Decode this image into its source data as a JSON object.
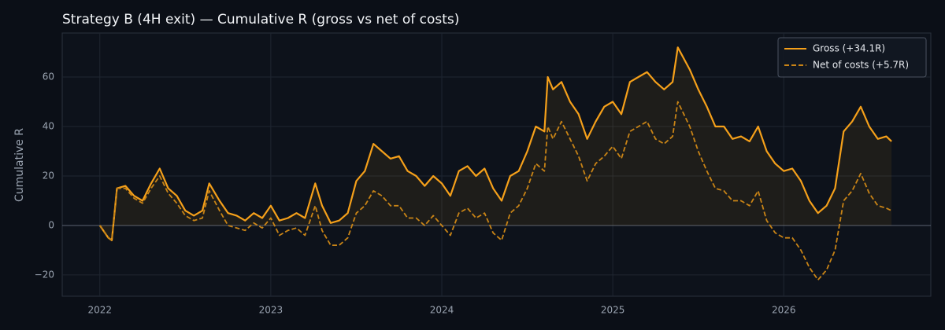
{
  "chart_data": {
    "type": "line",
    "title": "Strategy B (4H exit) — Cumulative R (gross vs net of costs)",
    "y_label": "Cumulative R",
    "x": [
      2022.0,
      2022.05,
      2022.07,
      2022.1,
      2022.15,
      2022.2,
      2022.25,
      2022.3,
      2022.35,
      2022.4,
      2022.45,
      2022.5,
      2022.55,
      2022.6,
      2022.64,
      2022.7,
      2022.75,
      2022.8,
      2022.85,
      2022.9,
      2022.95,
      2023.0,
      2023.05,
      2023.1,
      2023.15,
      2023.2,
      2023.26,
      2023.3,
      2023.35,
      2023.4,
      2023.45,
      2023.5,
      2023.55,
      2023.6,
      2023.65,
      2023.7,
      2023.75,
      2023.8,
      2023.85,
      2023.9,
      2023.95,
      2024.0,
      2024.05,
      2024.1,
      2024.15,
      2024.2,
      2024.25,
      2024.3,
      2024.35,
      2024.4,
      2024.45,
      2024.5,
      2024.55,
      2024.6,
      2024.62,
      2024.65,
      2024.7,
      2024.75,
      2024.8,
      2024.85,
      2024.9,
      2024.95,
      2025.0,
      2025.05,
      2025.1,
      2025.15,
      2025.2,
      2025.25,
      2025.3,
      2025.35,
      2025.38,
      2025.45,
      2025.5,
      2025.55,
      2025.6,
      2025.65,
      2025.7,
      2025.75,
      2025.8,
      2025.85,
      2025.9,
      2025.95,
      2026.0,
      2026.05,
      2026.1,
      2026.15,
      2026.2,
      2026.25,
      2026.3,
      2026.35,
      2026.4,
      2026.45,
      2026.5,
      2026.55,
      2026.6,
      2026.63
    ],
    "series": [
      {
        "name": "Gross (+34.1R)",
        "color": "#f5a01a",
        "linestyle": "solid",
        "fill_to_zero": true,
        "values": [
          0,
          -5,
          -6,
          15,
          16,
          12,
          10,
          17,
          23,
          15,
          12,
          6,
          4,
          6,
          17,
          10,
          5,
          4,
          2,
          5,
          3,
          8,
          2,
          3,
          5,
          3,
          17,
          8,
          1,
          2,
          5,
          18,
          22,
          33,
          30,
          27,
          28,
          22,
          20,
          16,
          20,
          17,
          12,
          22,
          24,
          20,
          23,
          15,
          10,
          20,
          22,
          30,
          40,
          38,
          60,
          55,
          58,
          50,
          45,
          35,
          42,
          48,
          50,
          45,
          58,
          60,
          62,
          58,
          55,
          58,
          72,
          63,
          55,
          48,
          40,
          40,
          35,
          36,
          34,
          40,
          30,
          25,
          22,
          23,
          18,
          10,
          5,
          8,
          15,
          38,
          42,
          48,
          40,
          35,
          36,
          34
        ]
      },
      {
        "name": "Net of costs (+5.7R)",
        "color": "#c98416",
        "linestyle": "dashed",
        "fill_to_zero": false,
        "values": [
          0,
          -5,
          -6,
          15,
          15,
          11,
          9,
          15,
          20,
          13,
          9,
          4,
          2,
          3,
          14,
          6,
          0,
          -1,
          -2,
          1,
          -1,
          3,
          -4,
          -2,
          -1,
          -4,
          8,
          -2,
          -8,
          -8,
          -5,
          5,
          8,
          14,
          12,
          8,
          8,
          3,
          3,
          0,
          4,
          0,
          -4,
          5,
          7,
          3,
          5,
          -3,
          -6,
          5,
          8,
          15,
          25,
          22,
          40,
          35,
          42,
          35,
          28,
          18,
          25,
          28,
          32,
          27,
          38,
          40,
          42,
          35,
          33,
          36,
          50,
          40,
          30,
          22,
          15,
          14,
          10,
          10,
          8,
          14,
          2,
          -3,
          -5,
          -5,
          -10,
          -17,
          -22,
          -18,
          -10,
          10,
          14,
          21,
          13,
          8,
          7,
          6
        ]
      }
    ],
    "xlim": [
      2021.78,
      2026.86
    ],
    "xticks": [
      2022,
      2023,
      2024,
      2025,
      2026
    ],
    "ylim": [
      -28.6,
      77.8
    ],
    "yticks": [
      {
        "value": -20,
        "label": "−20"
      },
      0,
      20,
      40,
      60
    ],
    "grid": true,
    "legend": "upper right"
  }
}
